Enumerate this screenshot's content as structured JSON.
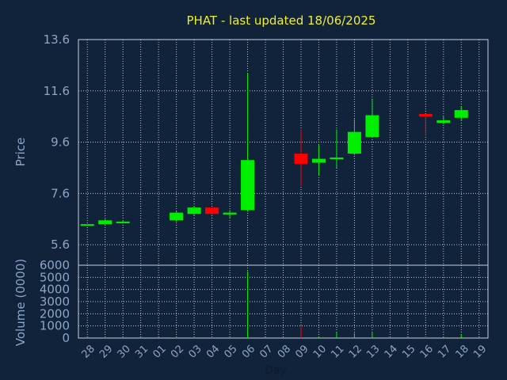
{
  "chart_data": {
    "type": "candlestick",
    "title": "PHAT - last updated 18/06/2025",
    "price_label": "Price",
    "volume_label": "Volume (0000)",
    "xlabel": "Day",
    "price_ylim": [
      4.8,
      13.6
    ],
    "price_ticks": [
      "5.6",
      "7.6",
      "9.6",
      "11.6",
      "13.6"
    ],
    "volume_ylim": [
      0,
      6000
    ],
    "volume_ticks": [
      "0",
      "1000",
      "2000",
      "3000",
      "4000",
      "5000",
      "6000"
    ],
    "days": [
      "28",
      "29",
      "30",
      "31",
      "01",
      "02",
      "03",
      "04",
      "05",
      "06",
      "07",
      "08",
      "09",
      "10",
      "11",
      "12",
      "13",
      "14",
      "15",
      "16",
      "17",
      "18",
      "19"
    ],
    "up_color": "#00ee00",
    "down_color": "#ff0000",
    "candles": [
      {
        "day": "28",
        "open": 6.4,
        "high": 6.4,
        "low": 6.4,
        "close": 6.4,
        "volume": 0
      },
      {
        "day": "29",
        "open": 6.4,
        "high": 6.6,
        "low": 6.4,
        "close": 6.55,
        "volume": 20
      },
      {
        "day": "30",
        "open": 6.48,
        "high": 6.55,
        "low": 6.42,
        "close": 6.5,
        "volume": 10
      },
      {
        "day": "02",
        "open": 6.55,
        "high": 6.9,
        "low": 6.5,
        "close": 6.85,
        "volume": 30
      },
      {
        "day": "03",
        "open": 6.8,
        "high": 7.1,
        "low": 6.75,
        "close": 7.05,
        "volume": 25
      },
      {
        "day": "04",
        "open": 7.05,
        "high": 7.05,
        "low": 6.75,
        "close": 6.8,
        "volume": 20
      },
      {
        "day": "05",
        "open": 6.78,
        "high": 6.95,
        "low": 6.65,
        "close": 6.85,
        "volume": 15
      },
      {
        "day": "06",
        "open": 6.95,
        "high": 12.3,
        "low": 6.9,
        "close": 8.9,
        "volume": 5500
      },
      {
        "day": "09",
        "open": 9.15,
        "high": 10.1,
        "low": 7.9,
        "close": 8.75,
        "volume": 1000
      },
      {
        "day": "10",
        "open": 8.8,
        "high": 9.5,
        "low": 8.3,
        "close": 8.95,
        "volume": 100
      },
      {
        "day": "11",
        "open": 8.95,
        "high": 10.1,
        "low": 8.6,
        "close": 9.0,
        "volume": 500
      },
      {
        "day": "12",
        "open": 9.15,
        "high": 10.5,
        "low": 9.1,
        "close": 10.0,
        "volume": 400
      },
      {
        "day": "13",
        "open": 9.8,
        "high": 11.3,
        "low": 9.8,
        "close": 10.65,
        "volume": 500
      },
      {
        "day": "16",
        "open": 10.7,
        "high": 10.7,
        "low": 9.85,
        "close": 10.6,
        "volume": 100
      },
      {
        "day": "17",
        "open": 10.35,
        "high": 10.6,
        "low": 10.3,
        "close": 10.45,
        "volume": 80
      },
      {
        "day": "18",
        "open": 10.55,
        "high": 11.0,
        "low": 10.45,
        "close": 10.85,
        "volume": 300
      }
    ]
  }
}
